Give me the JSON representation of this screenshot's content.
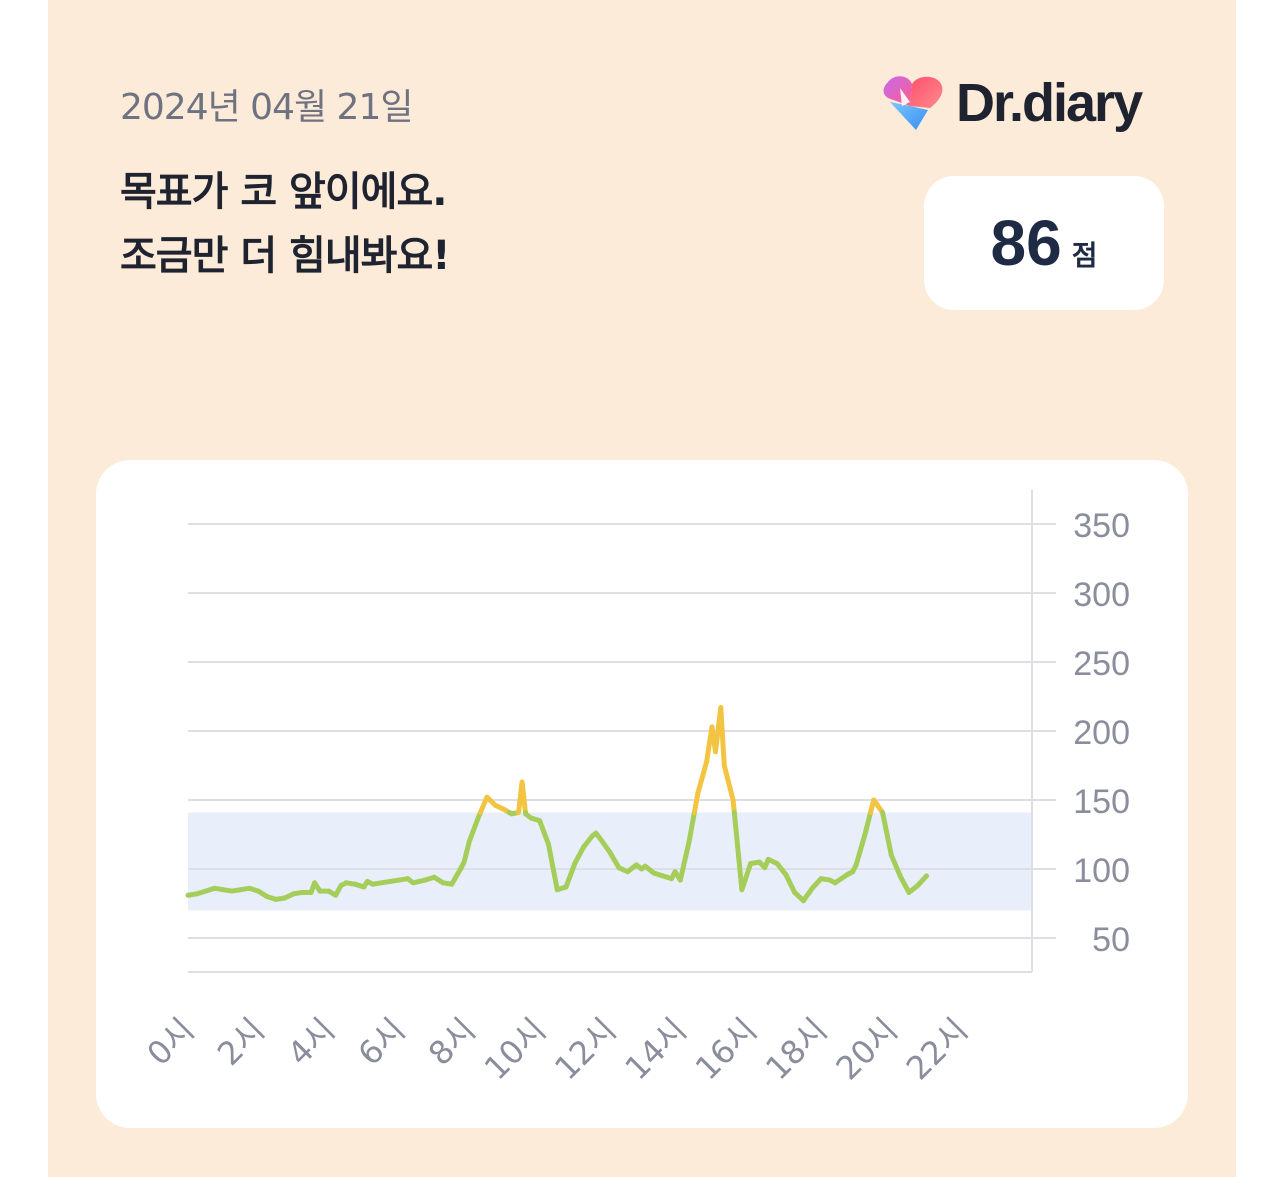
{
  "header": {
    "date": "2024년 04월 21일",
    "message_line1": "목표가 코 앞이에요.",
    "message_line2": "조금만 더 힘내봐요!",
    "logo_text": "Dr.diary"
  },
  "score": {
    "value": "86",
    "unit": "점"
  },
  "colors": {
    "background": "#fdebd9",
    "in_range_line": "#a5cd5a",
    "above_range_line": "#f3c442",
    "target_band": "#e9eefb",
    "grid": "#dedfe4",
    "tick_label": "#8a8d9b"
  },
  "chart_data": {
    "type": "line",
    "title": "",
    "xlabel": "",
    "ylabel": "",
    "x_unit": "시",
    "x_ticks": [
      "0시",
      "2시",
      "4시",
      "6시",
      "8시",
      "10시",
      "12시",
      "14시",
      "16시",
      "18시",
      "20시",
      "22시"
    ],
    "xlim": [
      0,
      24
    ],
    "y_ticks": [
      50,
      100,
      150,
      200,
      250,
      300,
      350
    ],
    "ylim": [
      25,
      375
    ],
    "y_axis_side": "right",
    "grid": true,
    "target_range": [
      70,
      141
    ],
    "threshold_high": 141,
    "series": [
      {
        "points": [
          [
            0.0,
            81
          ],
          [
            0.25,
            82
          ],
          [
            0.5,
            84
          ],
          [
            0.75,
            86
          ],
          [
            1.0,
            85
          ],
          [
            1.25,
            84
          ],
          [
            1.5,
            85
          ],
          [
            1.75,
            86
          ],
          [
            2.0,
            84
          ],
          [
            2.25,
            80
          ],
          [
            2.5,
            78
          ],
          [
            2.75,
            79
          ],
          [
            3.0,
            82
          ],
          [
            3.25,
            83
          ],
          [
            3.5,
            83
          ],
          [
            3.6,
            90
          ],
          [
            3.75,
            84
          ],
          [
            4.0,
            84
          ],
          [
            4.2,
            81
          ],
          [
            4.35,
            88
          ],
          [
            4.5,
            90
          ],
          [
            4.75,
            89
          ],
          [
            5.0,
            87
          ],
          [
            5.1,
            91
          ],
          [
            5.25,
            89
          ],
          [
            5.5,
            90
          ],
          [
            5.75,
            91
          ],
          [
            6.0,
            92
          ],
          [
            6.25,
            93
          ],
          [
            6.4,
            90
          ],
          [
            6.75,
            92
          ],
          [
            7.0,
            94
          ],
          [
            7.25,
            90
          ],
          [
            7.5,
            89
          ],
          [
            7.75,
            100
          ],
          [
            7.85,
            105
          ],
          [
            8.0,
            120
          ],
          [
            8.25,
            137
          ],
          [
            8.5,
            152
          ],
          [
            8.75,
            146
          ],
          [
            9.0,
            143
          ],
          [
            9.2,
            140
          ],
          [
            9.4,
            141
          ],
          [
            9.5,
            163
          ],
          [
            9.6,
            140
          ],
          [
            9.75,
            137
          ],
          [
            10.0,
            135
          ],
          [
            10.25,
            118
          ],
          [
            10.5,
            85
          ],
          [
            10.75,
            87
          ],
          [
            11.0,
            104
          ],
          [
            11.25,
            116
          ],
          [
            11.5,
            124
          ],
          [
            11.6,
            126
          ],
          [
            11.75,
            121
          ],
          [
            12.0,
            112
          ],
          [
            12.25,
            101
          ],
          [
            12.5,
            98
          ],
          [
            12.75,
            103
          ],
          [
            12.9,
            100
          ],
          [
            13.0,
            102
          ],
          [
            13.25,
            97
          ],
          [
            13.5,
            95
          ],
          [
            13.75,
            93
          ],
          [
            13.85,
            98
          ],
          [
            14.0,
            92
          ],
          [
            14.25,
            120
          ],
          [
            14.5,
            155
          ],
          [
            14.75,
            178
          ],
          [
            14.9,
            203
          ],
          [
            15.0,
            185
          ],
          [
            15.15,
            217
          ],
          [
            15.25,
            175
          ],
          [
            15.5,
            150
          ],
          [
            15.75,
            85
          ],
          [
            16.0,
            104
          ],
          [
            16.25,
            105
          ],
          [
            16.4,
            101
          ],
          [
            16.5,
            107
          ],
          [
            16.75,
            104
          ],
          [
            17.0,
            96
          ],
          [
            17.25,
            83
          ],
          [
            17.5,
            77
          ],
          [
            17.75,
            86
          ],
          [
            18.0,
            93
          ],
          [
            18.25,
            92
          ],
          [
            18.4,
            90
          ],
          [
            18.75,
            96
          ],
          [
            18.9,
            98
          ],
          [
            19.0,
            103
          ],
          [
            19.25,
            125
          ],
          [
            19.5,
            150
          ],
          [
            19.75,
            141
          ],
          [
            20.0,
            110
          ],
          [
            20.25,
            95
          ],
          [
            20.5,
            83
          ],
          [
            20.75,
            88
          ],
          [
            21.0,
            95
          ]
        ]
      }
    ]
  }
}
